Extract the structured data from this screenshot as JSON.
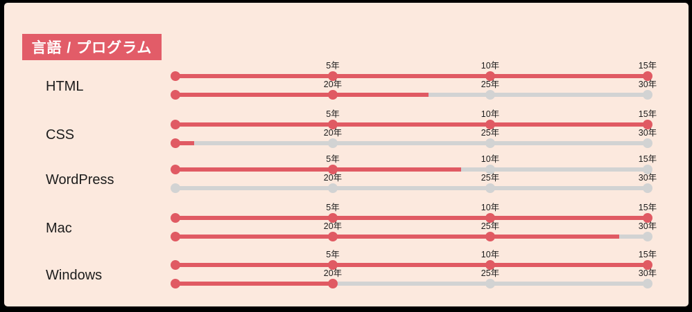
{
  "frame": {
    "border_color": "#000000",
    "panel_background": "#fce9de"
  },
  "header": {
    "title": "言語 / プログラム",
    "background": "#e25c68",
    "text_color": "#ffffff"
  },
  "chart_data": {
    "type": "line",
    "subtype": "dot-timeline-experience",
    "unit": "年",
    "row1_range": [
      0,
      15
    ],
    "row2_range": [
      15,
      30
    ],
    "axis_row1_ticks": [
      "5年",
      "10年",
      "15年"
    ],
    "axis_row2_ticks": [
      "20年",
      "25年",
      "30年"
    ],
    "accent_color": "#e05a63",
    "track_color": "#d2d3d3",
    "legend_position": "none",
    "grid": false,
    "rows": [
      {
        "label": "HTML",
        "years_estimate": 23,
        "row1": {
          "fill_pct": 100,
          "dots": [
            1,
            1,
            1,
            1
          ]
        },
        "row2": {
          "fill_pct": 53.6,
          "dots": [
            1,
            1,
            0,
            0
          ]
        }
      },
      {
        "label": "CSS",
        "years_estimate": 15.5,
        "row1": {
          "fill_pct": 100,
          "dots": [
            1,
            1,
            1,
            1
          ]
        },
        "row2": {
          "fill_pct": 4,
          "dots": [
            1,
            0,
            0,
            0
          ]
        }
      },
      {
        "label": "WordPress",
        "years_estimate": 9,
        "row1": {
          "fill_pct": 60.5,
          "dots": [
            1,
            1,
            0,
            0
          ]
        },
        "row2": {
          "fill_pct": 0,
          "dots": [
            0,
            0,
            0,
            0
          ]
        }
      },
      {
        "label": "Mac",
        "years_estimate": 29,
        "row1": {
          "fill_pct": 100,
          "dots": [
            1,
            1,
            1,
            1
          ]
        },
        "row2": {
          "fill_pct": 94,
          "dots": [
            1,
            1,
            1,
            0
          ]
        }
      },
      {
        "label": "Windows",
        "years_estimate": 20,
        "row1": {
          "fill_pct": 100,
          "dots": [
            1,
            1,
            1,
            1
          ]
        },
        "row2": {
          "fill_pct": 33.8,
          "dots": [
            1,
            1,
            0,
            0
          ]
        }
      }
    ]
  }
}
